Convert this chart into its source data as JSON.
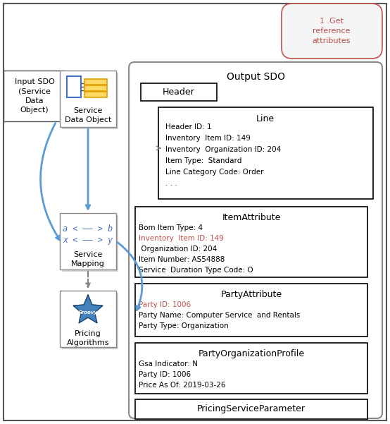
{
  "bg_color": "#ffffff",
  "note_text": "1 .Get\nreference\nattributes",
  "note_color": "#c0504d",
  "note_edge_color": "#c0c0c0",
  "input_sdo_label": "Input SDO\n(Service\nData\nObject)",
  "sdo_label": "Service\nData Object",
  "service_mapping_label": "Service\nMapping",
  "pricing_label": "Pricing\nAlgorithms",
  "mapping_line1": "a < —— > b",
  "mapping_line2": "x < —— > y",
  "mapping_code_color": "#4472c4",
  "output_title": "Output SDO",
  "header_label": "Header",
  "line_title": "Line",
  "line_content_lines": [
    "Header ID: 1",
    "Inventory  Item ID: 149",
    "Inventory  Organization ID: 204",
    "Item Type:  Standard",
    "Line Category Code: Order",
    ". . ."
  ],
  "item_title": "ItemAttribute",
  "item_lines": [
    [
      "Bom Item Type: 4",
      "black"
    ],
    [
      "Inventory  Item ID: 149",
      "#c0504d"
    ],
    [
      " Organization ID: 204",
      "black"
    ],
    [
      "Item Number: AS54888",
      "black"
    ],
    [
      "Service  Duration Type Code: O",
      "black"
    ]
  ],
  "party_title": "PartyAttribute",
  "party_lines": [
    [
      "Party ID: 1006",
      "#c0504d"
    ],
    [
      "Party Name: Computer Service  and Rentals",
      "black"
    ],
    [
      "Party Type: Organization",
      "black"
    ]
  ],
  "org_title": "PartyOrganizationProfile",
  "org_lines": [
    [
      "Gsa Indicator: N",
      "black"
    ],
    [
      "Party ID: 1006",
      "black"
    ],
    [
      "Price As Of: 2019-03-26",
      "black"
    ]
  ],
  "pricing_param_label": "PricingServiceParameter",
  "teal_color": "#5b9bd5",
  "teal_dark": "#2e75b6",
  "gray_color": "#808080",
  "box_edge_light": "#a0a0a0"
}
